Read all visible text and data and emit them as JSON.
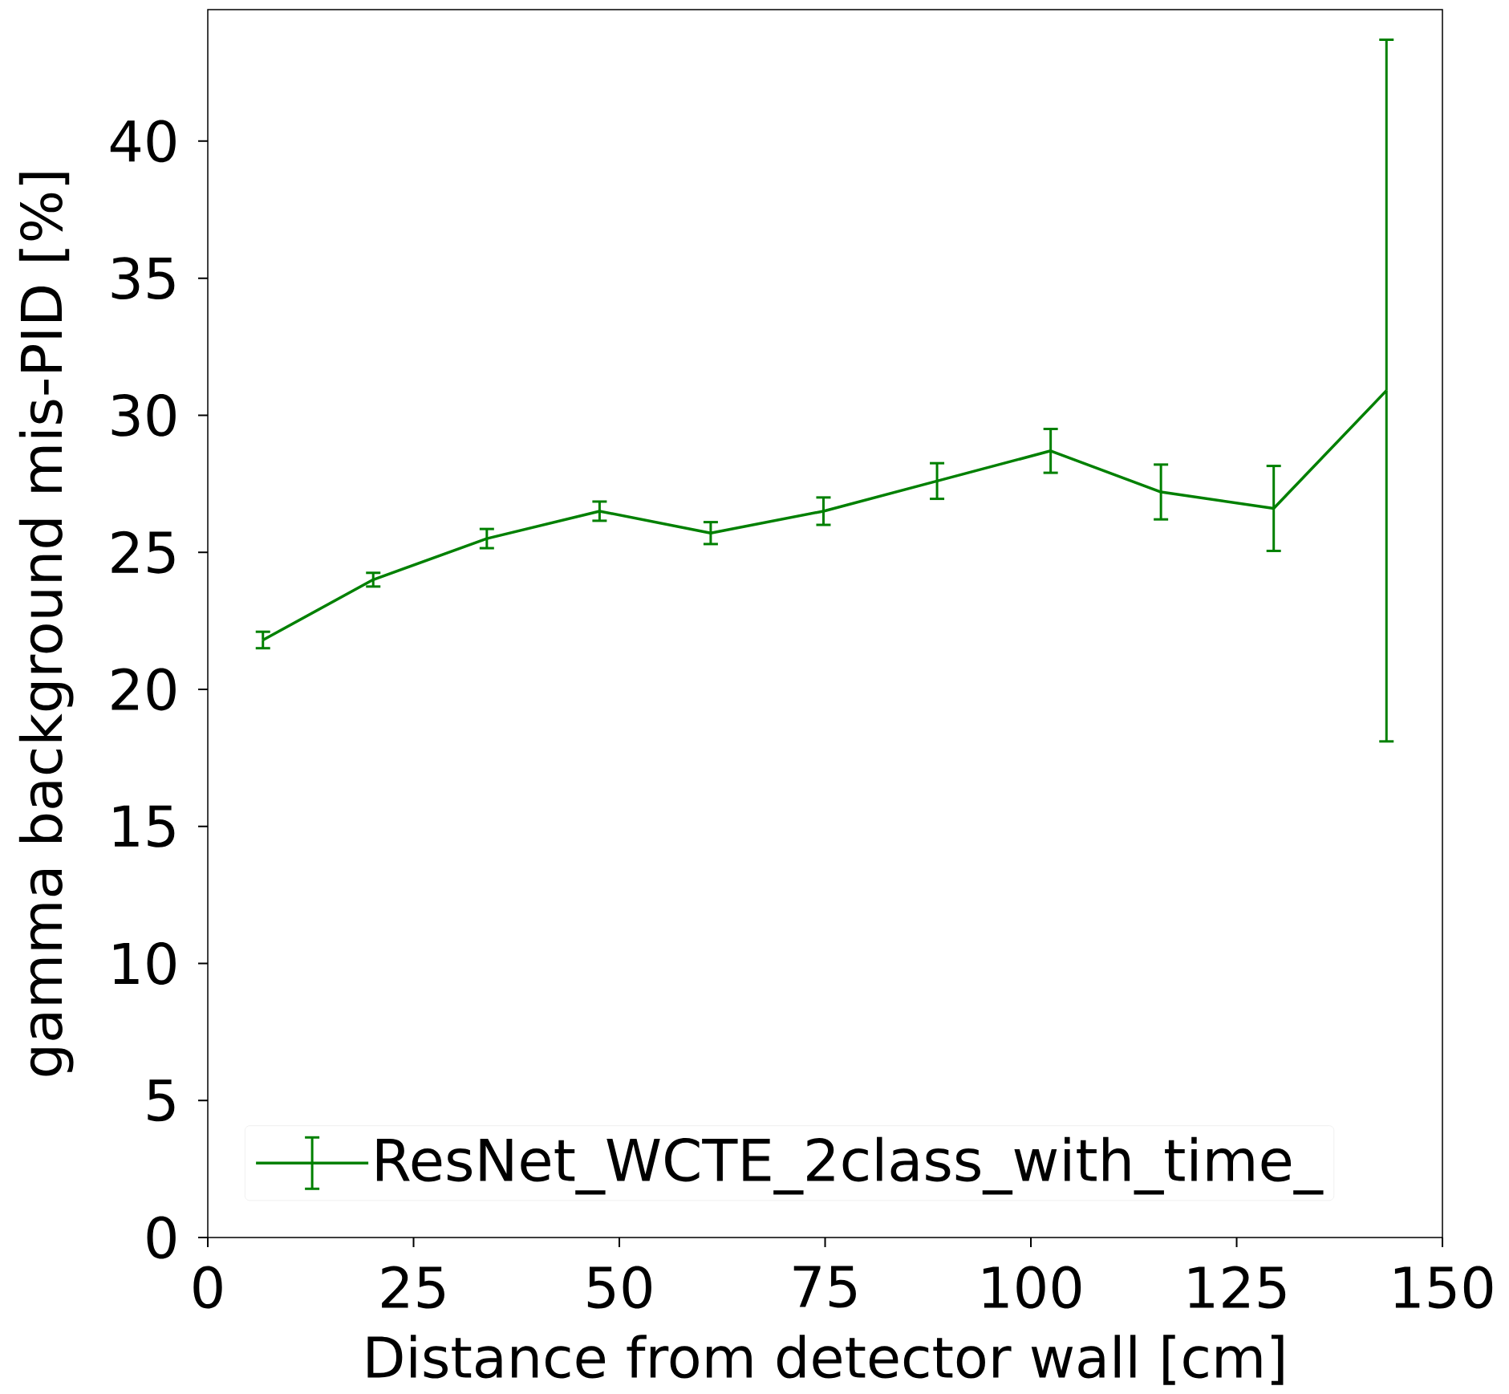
{
  "chart_data": {
    "type": "line",
    "xlabel": "Distance from detector wall [cm]",
    "ylabel": "gamma background mis-PID [%]",
    "x": [
      6.7,
      20.1,
      33.9,
      47.6,
      61.1,
      74.8,
      88.6,
      102.4,
      115.8,
      129.5,
      143.2
    ],
    "series": [
      {
        "name": "ResNet_WCTE_2class_with_time_",
        "color": "#008000",
        "values": [
          21.8,
          24.0,
          25.5,
          26.5,
          25.7,
          26.5,
          27.6,
          28.7,
          27.2,
          26.6,
          30.9
        ],
        "errors": [
          0.3,
          0.25,
          0.35,
          0.35,
          0.4,
          0.5,
          0.65,
          0.8,
          1.0,
          1.55,
          12.8
        ]
      }
    ],
    "xlim": [
      0,
      150
    ],
    "ylim": [
      0,
      44.8
    ],
    "xticks": [
      0,
      25,
      50,
      75,
      100,
      125,
      150
    ],
    "yticks": [
      0,
      5,
      10,
      15,
      20,
      25,
      30,
      35,
      40
    ],
    "grid": false,
    "legend": "bottom",
    "marker": "none",
    "line_style": "solid"
  }
}
